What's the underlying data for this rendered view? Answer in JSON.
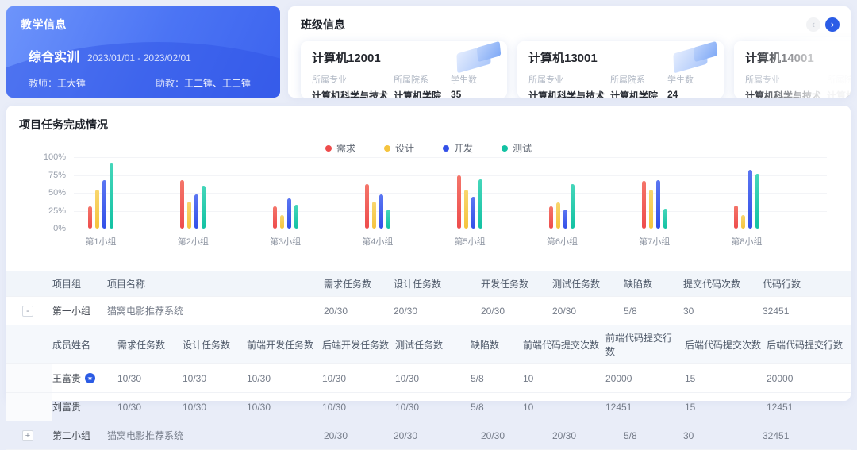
{
  "teaching_card": {
    "title": "教学信息",
    "course_name": "综合实训",
    "date_range": "2023/01/01 - 2023/02/01",
    "teacher_label": "教师：",
    "teacher_name": "王大锤",
    "assistant_label": "助教：",
    "assistant_names": "王二锤、王三锤"
  },
  "class_panel": {
    "title": "班级信息",
    "prev_icon": "‹",
    "next_icon": "›",
    "cards": [
      {
        "name": "计算机12001",
        "fields": [
          {
            "label": "所属专业",
            "value": "计算机科学与技术"
          },
          {
            "label": "所属院系",
            "value": "计算机学院"
          },
          {
            "label": "学生数",
            "value": "35"
          }
        ]
      },
      {
        "name": "计算机13001",
        "fields": [
          {
            "label": "所属专业",
            "value": "计算机科学与技术"
          },
          {
            "label": "所属院系",
            "value": "计算机学院"
          },
          {
            "label": "学生数",
            "value": "24"
          }
        ]
      },
      {
        "name": "计算机14001",
        "fields": [
          {
            "label": "所属专业",
            "value": "计算机科学与技术"
          },
          {
            "label": "所属院系",
            "value": "计算机学院"
          }
        ]
      }
    ]
  },
  "project_section": {
    "title": "项目任务完成情况"
  },
  "chart_data": {
    "type": "bar",
    "title": "项目任务完成情况",
    "categories": [
      "第1小组",
      "第2小组",
      "第3小组",
      "第4小组",
      "第5小组",
      "第6小组",
      "第7小组",
      "第8小组"
    ],
    "series": [
      {
        "name": "需求",
        "color": "#ee4c4c",
        "color_light": "#f4756a",
        "values": [
          31,
          68,
          31,
          62,
          75,
          31,
          67,
          32
        ]
      },
      {
        "name": "设计",
        "color": "#f5c43e",
        "color_light": "#f8d66e",
        "values": [
          54,
          38,
          19,
          38,
          54,
          37,
          54,
          19
        ]
      },
      {
        "name": "开发",
        "color": "#3350e8",
        "color_light": "#5b76f2",
        "values": [
          68,
          48,
          42,
          48,
          45,
          27,
          68,
          82
        ]
      },
      {
        "name": "测试",
        "color": "#13c2a3",
        "color_light": "#45d6ba",
        "values": [
          91,
          60,
          33,
          27,
          69,
          62,
          28,
          77
        ]
      }
    ],
    "ylim": [
      0,
      100
    ],
    "yticks": [
      "100%",
      "75%",
      "50%",
      "25%",
      "0%"
    ],
    "grid": true,
    "legend_position": "top-center"
  },
  "table": {
    "main_headers": [
      "项目组",
      "项目名称",
      "需求任务数",
      "设计任务数",
      "开发任务数",
      "测试任务数",
      "缺陷数",
      "提交代码次数",
      "代码行数"
    ],
    "sub_headers": [
      "成员姓名",
      "需求任务数",
      "设计任务数",
      "前端开发任务数",
      "后端开发任务数",
      "测试任务数",
      "缺陷数",
      "前端代码提交次数",
      "前端代码提交行数",
      "后端代码提交次数",
      "后端代码提交行数"
    ],
    "groups": [
      {
        "expander": "-",
        "expanded": true,
        "cells": [
          "第一小组",
          "猫窝电影推荐系统",
          "20/30",
          "20/30",
          "20/30",
          "20/30",
          "5/8",
          "30",
          "32451"
        ],
        "members": [
          {
            "name": "王富贵",
            "leader": true,
            "cells": [
              "10/30",
              "10/30",
              "10/30",
              "10/30",
              "10/30",
              "5/8",
              "10",
              "20000",
              "15",
              "20000"
            ]
          },
          {
            "name": "刘富贵",
            "leader": false,
            "cells": [
              "10/30",
              "10/30",
              "10/30",
              "10/30",
              "10/30",
              "5/8",
              "10",
              "12451",
              "15",
              "12451"
            ]
          }
        ]
      },
      {
        "expander": "+",
        "expanded": false,
        "cells": [
          "第二小组",
          "猫窝电影推荐系统",
          "20/30",
          "20/30",
          "20/30",
          "20/30",
          "5/8",
          "30",
          "32451"
        ],
        "members": []
      }
    ]
  },
  "icons": {
    "leader_badge": "★"
  }
}
